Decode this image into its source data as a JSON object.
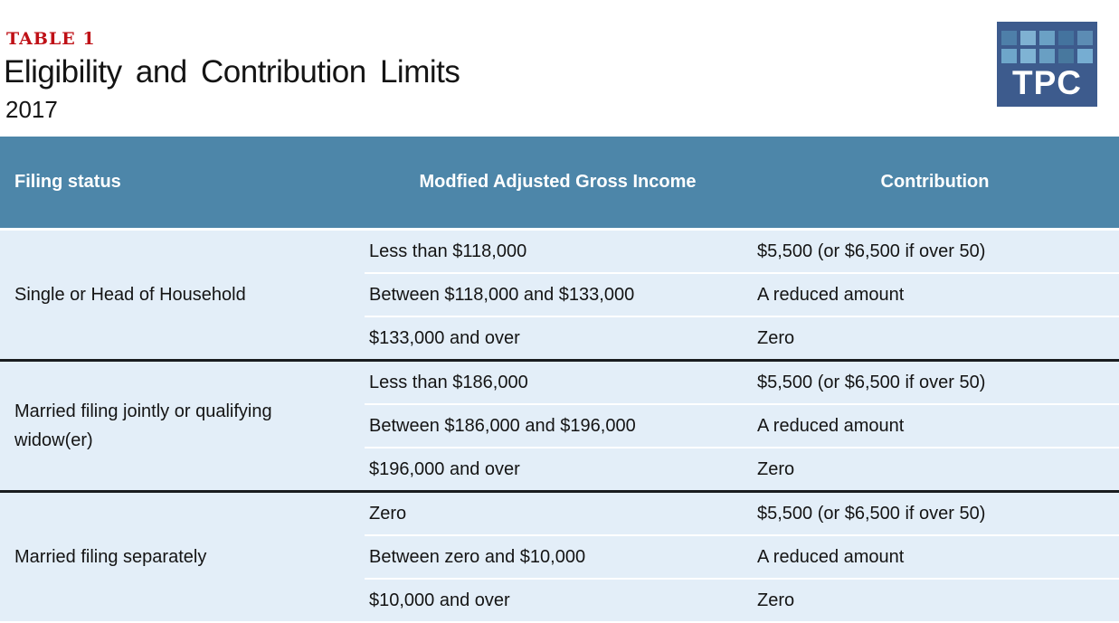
{
  "chart_data": {
    "type": "table",
    "table_label": "TABLE 1",
    "title": "Eligibility and Contribution Limits",
    "subtitle": "2017",
    "columns": [
      "Filing status",
      "Modfied Adjusted Gross Income",
      "Contribution"
    ],
    "groups": [
      {
        "filing_status": "Single or Head of Household",
        "rows": [
          {
            "magi": "Less than $118,000",
            "contribution": "$5,500 (or $6,500 if over 50)"
          },
          {
            "magi": "Between $118,000 and $133,000",
            "contribution": "A reduced amount"
          },
          {
            "magi": "$133,000 and over",
            "contribution": "Zero"
          }
        ]
      },
      {
        "filing_status": "Married filing jointly or qualifying widow(er)",
        "rows": [
          {
            "magi": "Less than $186,000",
            "contribution": "$5,500 (or $6,500 if over 50)"
          },
          {
            "magi": "Between $186,000 and $196,000",
            "contribution": "A reduced amount"
          },
          {
            "magi": "$196,000 and over",
            "contribution": "Zero"
          }
        ]
      },
      {
        "filing_status": "Married filing separately",
        "rows": [
          {
            "magi": "Zero",
            "contribution": "$5,500 (or $6,500 if over 50)"
          },
          {
            "magi": "Between zero and $10,000",
            "contribution": "A reduced amount"
          },
          {
            "magi": "$10,000 and over",
            "contribution": "Zero"
          }
        ]
      }
    ],
    "layout": {
      "header_text_color": "#ffffff",
      "grid": "white sub-row separators, black group separators"
    }
  },
  "logo": {
    "text": "TPC",
    "bg_color": "#3d5b8d",
    "square_colors": [
      "#4e7fa9",
      "#7fb1d2",
      "#6ba1c5",
      "#44739e",
      "#5c8cb4",
      "#6ea6ca",
      "#7fb3d4",
      "#699fc3",
      "#48789e",
      "#76add2"
    ]
  },
  "colors": {
    "header_bg": "#4d86a9",
    "row_bg": "#e3eef8",
    "label_red": "#bf1016",
    "group_separator": "#191c1f"
  }
}
